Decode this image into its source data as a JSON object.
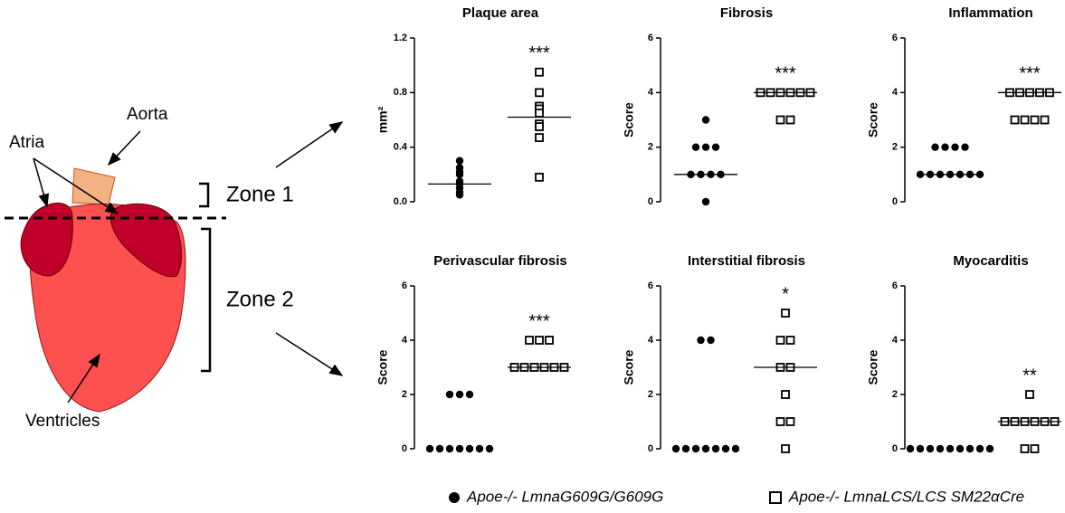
{
  "diagram": {
    "aorta": "Aorta",
    "atria": "Atria",
    "zone1": "Zone 1",
    "zone2": "Zone 2",
    "ventricles": "Ventricles"
  },
  "chart_data": [
    {
      "type": "scatter",
      "title": "Plaque area",
      "ylabel": "mm²",
      "ylim": [
        0,
        1.2
      ],
      "yticks": [
        {
          "value": 0,
          "label": "0.0"
        },
        {
          "value": 0.4,
          "label": "0.4"
        },
        {
          "value": 0.8,
          "label": "0.8"
        },
        {
          "value": 1.2,
          "label": "1.2"
        }
      ],
      "annotation": "***",
      "series": [
        {
          "name": "Apoe-/- LmnaG609G/G609G",
          "color": "#000000",
          "values": [
            0.3,
            0.25,
            0.22,
            0.2,
            0.15,
            0.13,
            0.1,
            0.07,
            0.05
          ],
          "line": 0.13
        },
        {
          "name": "Apoe-/- LmnaLCS/LCS SM22αCre",
          "color": "#000000",
          "values": [
            0.95,
            0.8,
            0.7,
            0.68,
            0.65,
            0.57,
            0.55,
            0.47,
            0.18
          ],
          "line": 0.62
        }
      ]
    },
    {
      "type": "scatter",
      "title": "Fibrosis",
      "ylabel": "Score",
      "ylim": [
        0,
        6
      ],
      "yticks": [
        0,
        2,
        4,
        6
      ],
      "annotation": "***",
      "series": [
        {
          "name": "Apoe-/- LmnaG609G/G609G",
          "color": "#000000",
          "values": [
            3,
            2,
            2,
            2,
            1,
            1,
            1,
            1,
            0
          ],
          "line": 1
        },
        {
          "name": "Apoe-/- LmnaLCS/LCS SM22αCre",
          "color": "#000000",
          "values": [
            4,
            4,
            4,
            4,
            4,
            4,
            3,
            3
          ],
          "line": 4
        }
      ]
    },
    {
      "type": "scatter",
      "title": "Inflammation",
      "ylabel": "Score",
      "ylim": [
        0,
        6
      ],
      "yticks": [
        0,
        2,
        4,
        6
      ],
      "annotation": "***",
      "series": [
        {
          "name": "Apoe-/- LmnaG609G/G609G",
          "color": "#000000",
          "values": [
            2,
            2,
            2,
            2,
            1,
            1,
            1,
            1,
            1,
            1,
            1
          ],
          "line": 1
        },
        {
          "name": "Apoe-/- LmnaLCS/LCS SM22αCre",
          "color": "#000000",
          "values": [
            4,
            4,
            4,
            4,
            4,
            3,
            3,
            3,
            3
          ],
          "line": 4
        }
      ]
    },
    {
      "type": "scatter",
      "title": "Perivascular fibrosis",
      "ylabel": "Score",
      "ylim": [
        0,
        6
      ],
      "yticks": [
        0,
        2,
        4,
        6
      ],
      "annotation": "***",
      "series": [
        {
          "name": "Apoe-/- LmnaG609G/G609G",
          "color": "#000000",
          "values": [
            2,
            2,
            2,
            0,
            0,
            0,
            0,
            0,
            0,
            0
          ]
        },
        {
          "name": "Apoe-/- LmnaLCS/LCS SM22αCre",
          "color": "#000000",
          "values": [
            4,
            4,
            4,
            3,
            3,
            3,
            3,
            3,
            3
          ],
          "line": 3
        }
      ]
    },
    {
      "type": "scatter",
      "title": "Interstitial fibrosis",
      "ylabel": "Score",
      "ylim": [
        0,
        6
      ],
      "yticks": [
        0,
        2,
        4,
        6
      ],
      "annotation": "*",
      "series": [
        {
          "name": "Apoe-/- LmnaG609G/G609G",
          "color": "#000000",
          "values": [
            4,
            4,
            0,
            0,
            0,
            0,
            0,
            0,
            0
          ]
        },
        {
          "name": "Apoe-/- LmnaLCS/LCS SM22αCre",
          "color": "#000000",
          "values": [
            5,
            4,
            4,
            3,
            3,
            2,
            1,
            1,
            0
          ],
          "line": 3
        }
      ]
    },
    {
      "type": "scatter",
      "title": "Myocarditis",
      "ylabel": "Score",
      "ylim": [
        0,
        6
      ],
      "yticks": [
        0,
        2,
        4,
        6
      ],
      "annotation": "**",
      "series": [
        {
          "name": "Apoe-/- LmnaG609G/G609G",
          "color": "#000000",
          "values": [
            0,
            0,
            0,
            0,
            0,
            0,
            0,
            0,
            0
          ]
        },
        {
          "name": "Apoe-/- LmnaLCS/LCS SM22αCre",
          "color": "#000000",
          "values": [
            2,
            1,
            1,
            1,
            1,
            1,
            1,
            0,
            0
          ],
          "line": 1
        }
      ]
    }
  ]
}
